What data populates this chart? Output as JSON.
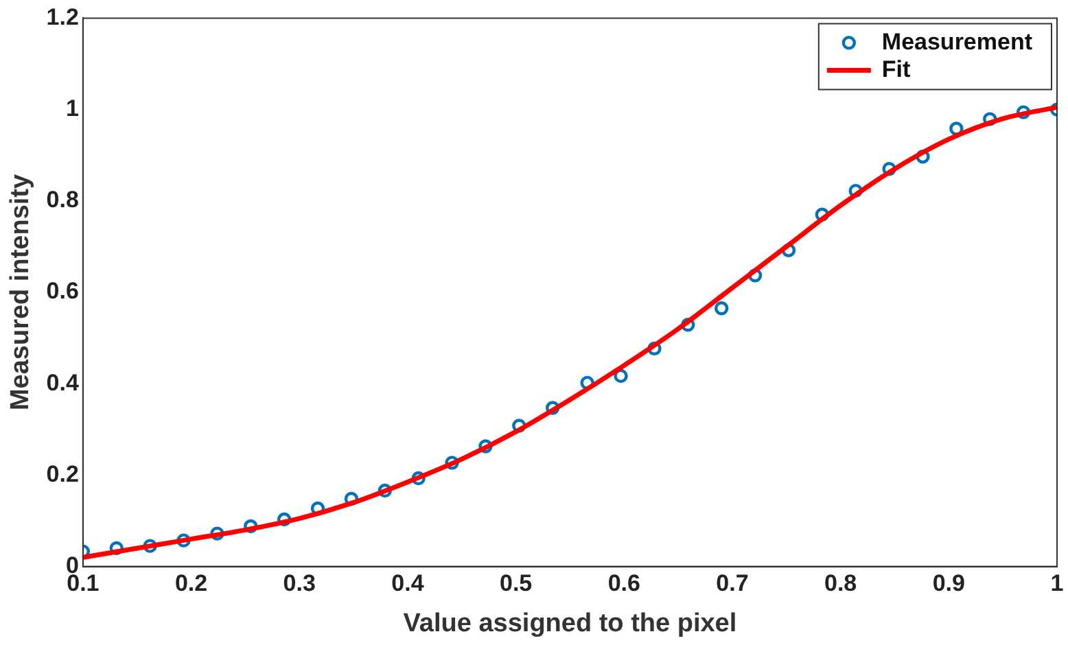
{
  "chart_data": {
    "type": "scatter",
    "xlabel": "Value assigned to the pixel",
    "ylabel": "Measured intensity",
    "xlim": [
      0.1,
      1
    ],
    "xticks": [
      0.1,
      0.2,
      0.3,
      0.4,
      0.5,
      0.6,
      0.7,
      0.8,
      0.9,
      1
    ],
    "ylim": [
      0,
      1.2
    ],
    "yticks": [
      0,
      0.2,
      0.4,
      0.6,
      0.8,
      1,
      1.2
    ],
    "grid": false,
    "legend": "top right",
    "series": [
      {
        "name": "Measurement",
        "type": "scatter",
        "marker": "circle",
        "color": "#0072bd",
        "x": [
          0.1,
          0.131,
          0.162,
          0.193,
          0.224,
          0.255,
          0.286,
          0.317,
          0.348,
          0.379,
          0.41,
          0.441,
          0.472,
          0.503,
          0.534,
          0.566,
          0.597,
          0.628,
          0.659,
          0.69,
          0.721,
          0.752,
          0.783,
          0.814,
          0.845,
          0.876,
          0.907,
          0.938,
          0.969,
          1
        ],
        "values": [
          0.033,
          0.04,
          0.045,
          0.057,
          0.072,
          0.088,
          0.103,
          0.127,
          0.148,
          0.166,
          0.193,
          0.227,
          0.263,
          0.308,
          0.347,
          0.402,
          0.417,
          0.477,
          0.529,
          0.565,
          0.637,
          0.692,
          0.77,
          0.822,
          0.87,
          0.897,
          0.958,
          0.979,
          0.994,
          1
        ]
      },
      {
        "name": "Fit",
        "type": "line",
        "marker": "none",
        "line_style": "solid",
        "color": "#ff0000",
        "x": [
          0.1,
          0.15,
          0.2,
          0.25,
          0.3,
          0.35,
          0.4,
          0.45,
          0.5,
          0.55,
          0.6,
          0.65,
          0.7,
          0.75,
          0.8,
          0.85,
          0.9,
          0.95,
          1
        ],
        "values": [
          0.02,
          0.04,
          0.06,
          0.08,
          0.105,
          0.14,
          0.185,
          0.235,
          0.295,
          0.365,
          0.44,
          0.52,
          0.61,
          0.7,
          0.79,
          0.87,
          0.935,
          0.98,
          1.005
        ]
      }
    ]
  }
}
